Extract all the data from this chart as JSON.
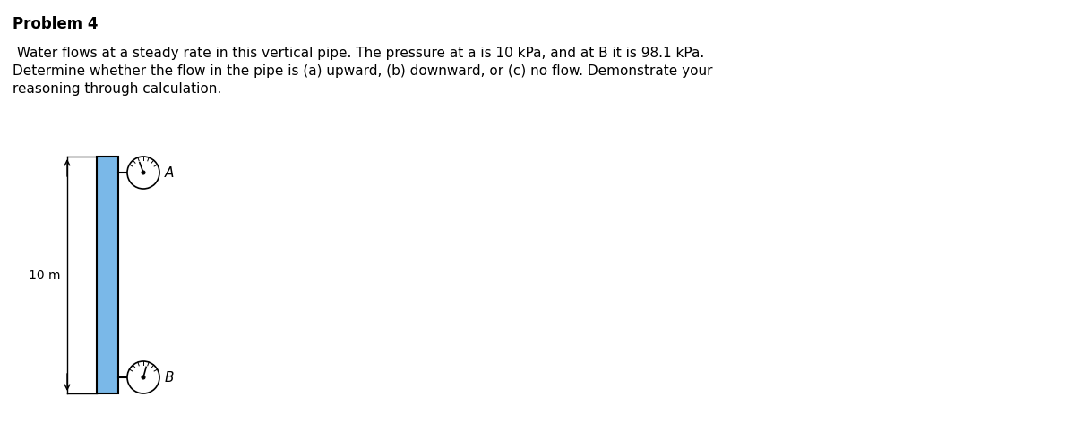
{
  "title": "Problem 4",
  "line1": " Water flows at a steady rate in this vertical pipe. The pressure at a is 10 kPa, and at B it is 98.1 kPa.",
  "line2": "Determine whether the flow in the pipe is (a) upward, (b) downward, or (c) no flow. Demonstrate your",
  "line3": "reasoning through calculation.",
  "pipe_color": "#7ab8e8",
  "pipe_edge_color": "#000000",
  "label_A": "A",
  "label_B": "B",
  "dim_label": "10 m",
  "background_color": "#ffffff",
  "fig_width": 12.0,
  "fig_height": 4.73,
  "title_fontsize": 12,
  "body_fontsize": 11,
  "diagram_fontsize": 10
}
